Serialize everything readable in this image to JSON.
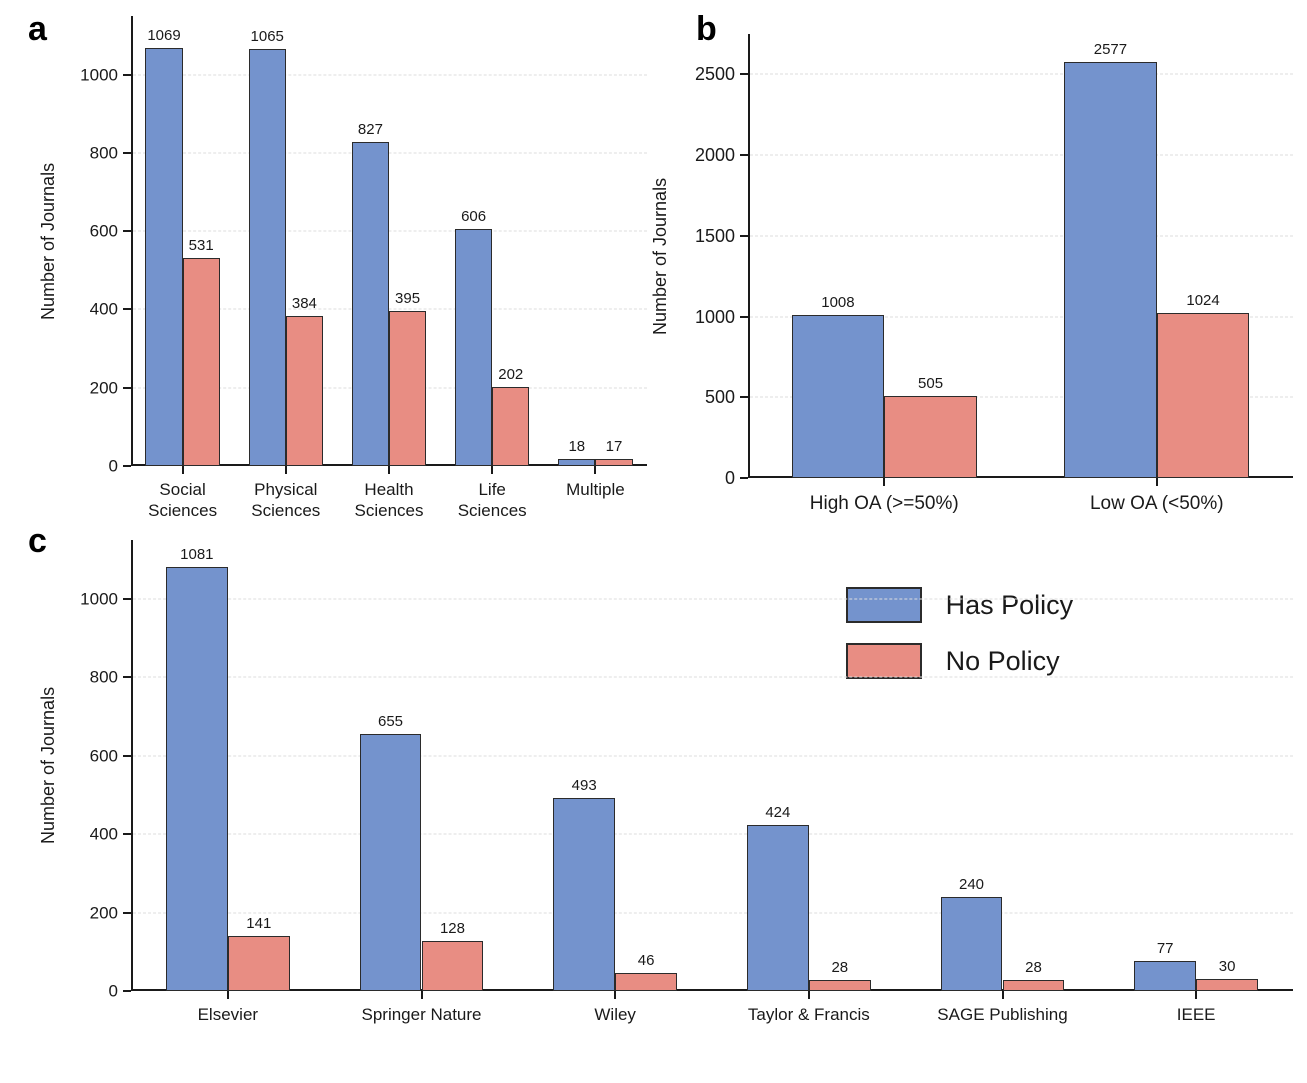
{
  "colors": {
    "has_policy_fill": "#7493cd",
    "has_policy_edge": "#2b2b2b",
    "no_policy_fill": "#e88d83",
    "no_policy_edge": "#2b2b2b",
    "axis": "#1a1a1a",
    "grid": "#dedede"
  },
  "legend": {
    "items": [
      {
        "label": "Has Policy",
        "key": "has_policy"
      },
      {
        "label": "No Policy",
        "key": "no_policy"
      }
    ]
  },
  "chart_data": [
    {
      "panel": "a",
      "type": "bar",
      "title": "",
      "xlabel": "",
      "ylabel": "Number of Journals",
      "categories": [
        "Social\nSciences",
        "Physical\nSciences",
        "Health\nSciences",
        "Life\nSciences",
        "Multiple"
      ],
      "series": [
        {
          "name": "Has Policy",
          "key": "has_policy",
          "values": [
            1069,
            1065,
            827,
            606,
            18
          ]
        },
        {
          "name": "No Policy",
          "key": "no_policy",
          "values": [
            531,
            384,
            395,
            202,
            17
          ]
        }
      ],
      "ylim": [
        0,
        1150
      ],
      "yticks": [
        0,
        200,
        400,
        600,
        800,
        1000
      ],
      "grid": true,
      "legend_visible": false
    },
    {
      "panel": "b",
      "type": "bar",
      "title": "",
      "xlabel": "",
      "ylabel": "Number of Journals",
      "categories": [
        "High OA (>=50%)",
        "Low OA (<50%)"
      ],
      "series": [
        {
          "name": "Has Policy",
          "key": "has_policy",
          "values": [
            1008,
            2577
          ]
        },
        {
          "name": "No Policy",
          "key": "no_policy",
          "values": [
            505,
            1024
          ]
        }
      ],
      "ylim": [
        0,
        2750
      ],
      "yticks": [
        0,
        500,
        1000,
        1500,
        2000,
        2500
      ],
      "grid": true,
      "legend_visible": false
    },
    {
      "panel": "c",
      "type": "bar",
      "title": "",
      "xlabel": "",
      "ylabel": "Number of Journals",
      "categories": [
        "Elsevier",
        "Springer Nature",
        "Wiley",
        "Taylor & Francis",
        "SAGE Publishing",
        "IEEE"
      ],
      "series": [
        {
          "name": "Has Policy",
          "key": "has_policy",
          "values": [
            1081,
            655,
            493,
            424,
            240,
            77
          ]
        },
        {
          "name": "No Policy",
          "key": "no_policy",
          "values": [
            141,
            128,
            46,
            28,
            28,
            30
          ]
        }
      ],
      "ylim": [
        0,
        1150
      ],
      "yticks": [
        0,
        200,
        400,
        600,
        800,
        1000
      ],
      "grid": true,
      "legend_visible": true
    }
  ]
}
